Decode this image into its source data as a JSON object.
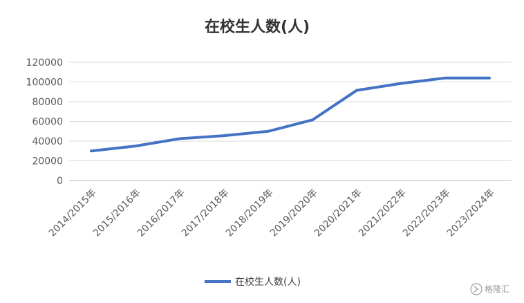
{
  "chart_data": {
    "type": "line",
    "title": "在校生人数(人)",
    "xlabel": "",
    "ylabel": "",
    "categories": [
      "2014/2015年",
      "2015/2016年",
      "2016/2017年",
      "2017/2018年",
      "2018/2019年",
      "2019/2020年",
      "2020/2021年",
      "2021/2022年",
      "2022/2023年",
      "2023/2024年"
    ],
    "series": [
      {
        "name": "在校生人数(人)",
        "values": [
          30000,
          35000,
          42500,
          45500,
          50000,
          61500,
          91500,
          98500,
          104000,
          104000
        ],
        "color": "#4472C4"
      }
    ],
    "ylim": [
      0,
      120000
    ],
    "yticks": [
      "0",
      "20000",
      "40000",
      "60000",
      "80000",
      "100000",
      "120000"
    ],
    "grid": true,
    "legend": "bottom"
  },
  "watermark": {
    "text": "格隆汇",
    "icon": "chevron-icon"
  }
}
